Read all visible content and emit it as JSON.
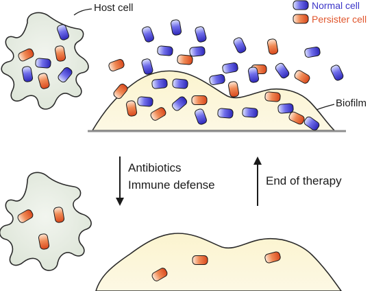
{
  "labels": {
    "host_cell": "Host cell",
    "biofilm": "Biofilm",
    "antibiotics": "Antibiotics",
    "immune_defense": "Immune defense",
    "end_of_therapy": "End of therapy"
  },
  "legend": {
    "normal_cell": "Normal cell",
    "persister_cell": "Persister cell"
  },
  "colors": {
    "normal_cell": "#3b35c8",
    "persister_cell": "#e0552c",
    "host_cell_fill": "#e6ece2",
    "biofilm_fill": "#fbf2c8",
    "surface_line": "#8f8f8f"
  },
  "icons": {
    "normal_cell": "blue-rod-icon",
    "persister_cell": "orange-rod-icon"
  }
}
